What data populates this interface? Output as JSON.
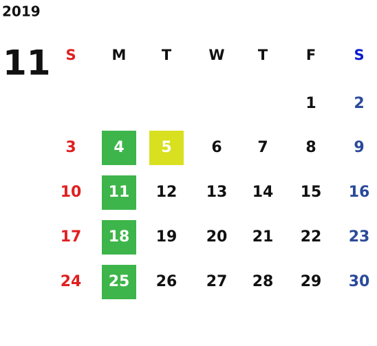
{
  "year": "2019",
  "month": "11",
  "weekdays": [
    "S",
    "M",
    "T",
    "W",
    "T",
    "F",
    "S"
  ],
  "weeks": [
    [
      null,
      null,
      null,
      null,
      null,
      1,
      2
    ],
    [
      3,
      4,
      5,
      6,
      7,
      8,
      9
    ],
    [
      10,
      11,
      12,
      13,
      14,
      15,
      16
    ],
    [
      17,
      18,
      19,
      20,
      21,
      22,
      23
    ],
    [
      24,
      25,
      26,
      27,
      28,
      29,
      30
    ]
  ]
}
